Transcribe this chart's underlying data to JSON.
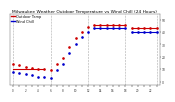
{
  "title": "Milwaukee Weather Outdoor Temperature vs Wind Chill (24 Hours)",
  "title_fontsize": 3.2,
  "background_color": "#ffffff",
  "x_hours": [
    0,
    1,
    2,
    3,
    4,
    5,
    6,
    7,
    8,
    9,
    10,
    11,
    12,
    13,
    14,
    15,
    16,
    17,
    18,
    19,
    20,
    21,
    22,
    23
  ],
  "temp_values": [
    14,
    13,
    12,
    11,
    10,
    10,
    9,
    14,
    19,
    28,
    35,
    40,
    44,
    46,
    46,
    46,
    46,
    46,
    46,
    43,
    43,
    43,
    43,
    43
  ],
  "windchill_values": [
    8,
    7,
    6,
    5,
    4,
    4,
    3,
    9,
    14,
    23,
    30,
    36,
    40,
    43,
    43,
    43,
    43,
    43,
    43,
    40,
    40,
    40,
    40,
    40
  ],
  "temp_color": "#cc0000",
  "windchill_color": "#0000cc",
  "grid_color": "#aaaaaa",
  "ylim_min": -3,
  "ylim_max": 55,
  "yticks": [
    0,
    10,
    20,
    30,
    40,
    50
  ],
  "ytick_labels": [
    "0",
    "10",
    "20",
    "30",
    "40",
    "50"
  ],
  "vgrid_hours": [
    0,
    6,
    12,
    18,
    23
  ],
  "xtick_positions": [
    0,
    1,
    2,
    3,
    4,
    5,
    6,
    7,
    8,
    9,
    10,
    11,
    12,
    13,
    14,
    15,
    16,
    17,
    18,
    19,
    20,
    21,
    22,
    23
  ],
  "marker_size": 1.8,
  "linewidth": 0.0,
  "legend_temp": "Outdoor Temp",
  "legend_windchill": "Wind Chill",
  "legend_fontsize": 2.5
}
